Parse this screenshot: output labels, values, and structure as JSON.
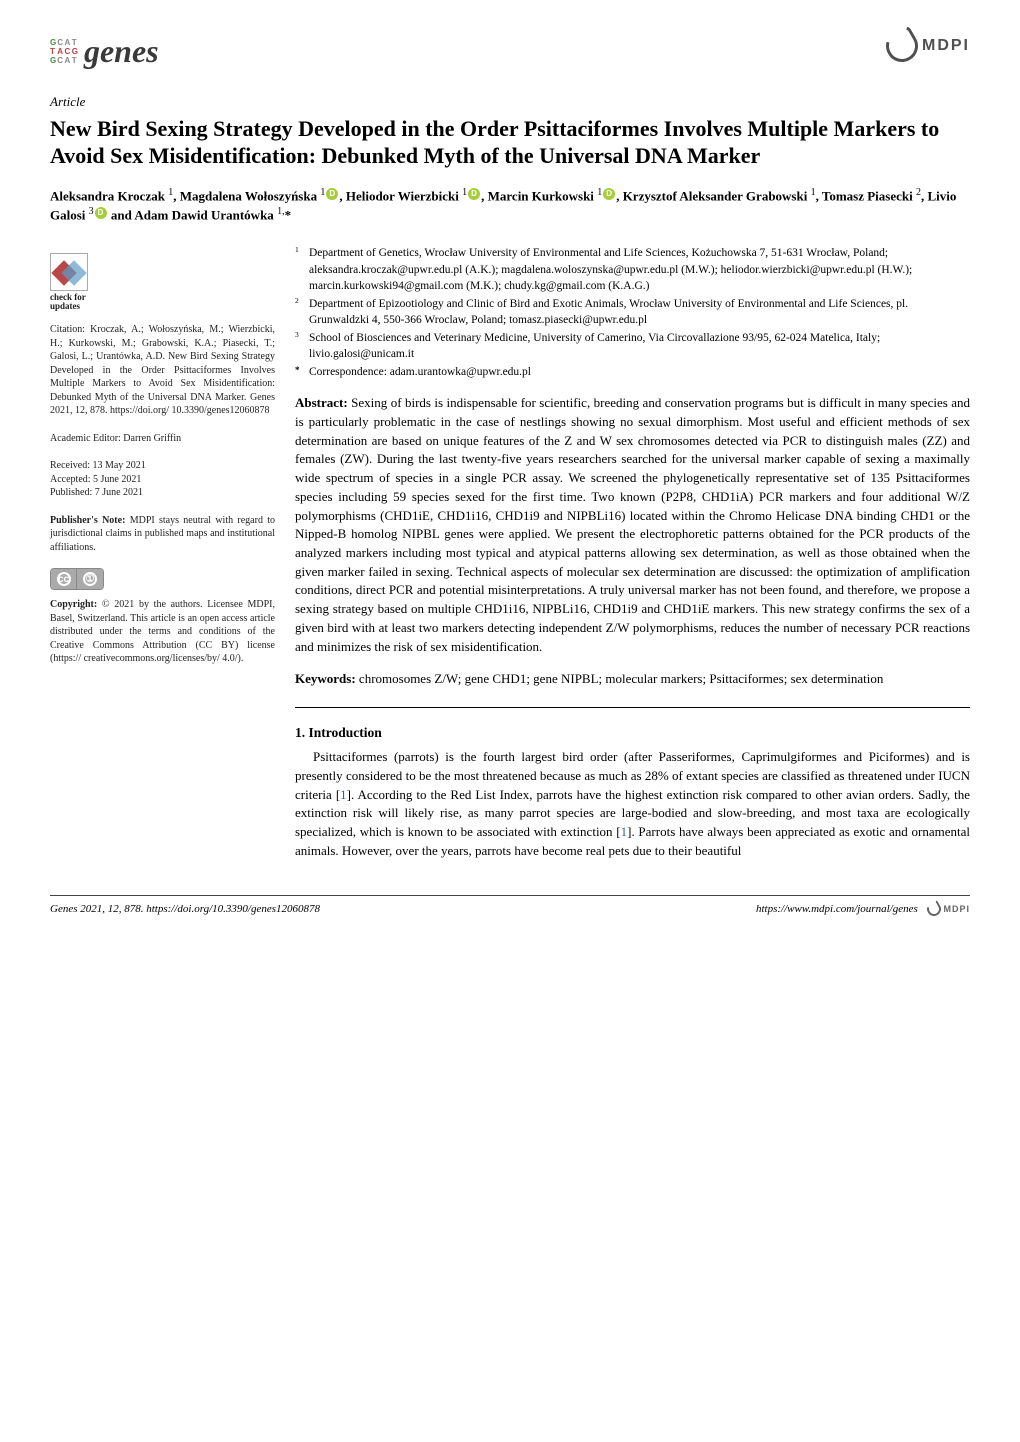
{
  "colors": {
    "background": "#ffffff",
    "text": "#000000",
    "link": "#2a5db0",
    "orcid": "#a6ce39",
    "mdpi_gray": "#505050"
  },
  "journal_logo": {
    "grid_letters": [
      "G",
      "C",
      "A",
      "T",
      "T",
      "A",
      "C",
      "G",
      "G",
      "C",
      "A",
      "T"
    ],
    "text": "genes"
  },
  "mdpi_label": "MDPI",
  "article_type": "Article",
  "title": "New Bird Sexing Strategy Developed in the Order Psittaciformes Involves Multiple Markers to Avoid Sex Misidentification: Debunked Myth of the Universal DNA Marker",
  "authors_html": "Aleksandra Kroczak <sup>1</sup>, Magdalena Wołoszyńska <sup>1</sup><span class='orcid' data-name='orcid-icon' data-interactable='false'></span>, Heliodor Wierzbicki <sup>1</sup><span class='orcid' data-name='orcid-icon' data-interactable='false'></span>, Marcin Kurkowski <sup>1</sup><span class='orcid' data-name='orcid-icon' data-interactable='false'></span>, Krzysztof Aleksander Grabowski <sup>1</sup>, Tomasz Piasecki <sup>2</sup>, Livio Galosi <sup>3</sup><span class='orcid' data-name='orcid-icon' data-interactable='false'></span> and Adam Dawid Urantówka <sup>1,</sup>*",
  "affiliations": [
    {
      "n": "1",
      "text": "Department of Genetics, Wrocław University of Environmental and Life Sciences, Kożuchowska 7, 51-631 Wrocław, Poland; aleksandra.kroczak@upwr.edu.pl (A.K.); magdalena.woloszynska@upwr.edu.pl (M.W.); heliodor.wierzbicki@upwr.edu.pl (H.W.); marcin.kurkowski94@gmail.com (M.K.); chudy.kg@gmail.com (K.A.G.)"
    },
    {
      "n": "2",
      "text": "Department of Epizootiology and Clinic of Bird and Exotic Animals, Wrocław University of Environmental and Life Sciences, pl. Grunwaldzki 4, 550-366 Wroclaw, Poland; tomasz.piasecki@upwr.edu.pl"
    },
    {
      "n": "3",
      "text": "School of Biosciences and Veterinary Medicine, University of Camerino, Via Circovallazione 93/95, 62-024 Matelica, Italy; livio.galosi@unicam.it"
    }
  ],
  "correspondence": {
    "symbol": "*",
    "text": "Correspondence: adam.urantowka@upwr.edu.pl"
  },
  "check_for_updates": {
    "line1": "check for",
    "line2": "updates"
  },
  "citation": "Citation: Kroczak, A.; Wołoszyńska, M.; Wierzbicki, H.; Kurkowski, M.; Grabowski, K.A.; Piasecki, T.; Galosi, L.; Urantówka, A.D. New Bird Sexing Strategy Developed in the Order Psittaciformes Involves Multiple Markers to Avoid Sex Misidentification: Debunked Myth of the Universal DNA Marker. Genes 2021, 12, 878. https://doi.org/ 10.3390/genes12060878",
  "editor": "Academic Editor: Darren Griffin",
  "dates": {
    "received": "Received: 13 May 2021",
    "accepted": "Accepted: 5 June 2021",
    "published": "Published: 7 June 2021"
  },
  "publisher_note": "Publisher's Note: MDPI stays neutral with regard to jurisdictional claims in published maps and institutional affiliations.",
  "copyright": "Copyright: © 2021 by the authors. Licensee MDPI, Basel, Switzerland. This article is an open access article distributed under the terms and conditions of the Creative Commons Attribution (CC BY) license (https:// creativecommons.org/licenses/by/ 4.0/).",
  "abstract_label": "Abstract:",
  "abstract": "Sexing of birds is indispensable for scientific, breeding and conservation programs but is difficult in many species and is particularly problematic in the case of nestlings showing no sexual dimorphism. Most useful and efficient methods of sex determination are based on unique features of the Z and W sex chromosomes detected via PCR to distinguish males (ZZ) and females (ZW). During the last twenty-five years researchers searched for the universal marker capable of sexing a maximally wide spectrum of species in a single PCR assay. We screened the phylogenetically representative set of 135 Psittaciformes species including 59 species sexed for the first time. Two known (P2P8, CHD1iA) PCR markers and four additional W/Z polymorphisms (CHD1iE, CHD1i16, CHD1i9 and NIPBLi16) located within the Chromo Helicase DNA binding CHD1 or the Nipped-B homolog NIPBL genes were applied. We present the electrophoretic patterns obtained for the PCR products of the analyzed markers including most typical and atypical patterns allowing sex determination, as well as those obtained when the given marker failed in sexing. Technical aspects of molecular sex determination are discussed: the optimization of amplification conditions, direct PCR and potential misinterpretations. A truly universal marker has not been found, and therefore, we propose a sexing strategy based on multiple CHD1i16, NIPBLi16, CHD1i9 and CHD1iE markers. This new strategy confirms the sex of a given bird with at least two markers detecting independent Z/W polymorphisms, reduces the number of necessary PCR reactions and minimizes the risk of sex misidentification.",
  "keywords_label": "Keywords:",
  "keywords": "chromosomes Z/W; gene CHD1; gene NIPBL; molecular markers; Psittaciformes; sex determination",
  "section1_heading": "1. Introduction",
  "section1_body": "Psittaciformes (parrots) is the fourth largest bird order (after Passeriformes, Caprimulgiformes and Piciformes) and is presently considered to be the most threatened because as much as 28% of extant species are classified as threatened under IUCN criteria [1]. According to the Red List Index, parrots have the highest extinction risk compared to other avian orders. Sadly, the extinction risk will likely rise, as many parrot species are large-bodied and slow-breeding, and most taxa are ecologically specialized, which is known to be associated with extinction [1]. Parrots have always been appreciated as exotic and ornamental animals. However, over the years, parrots have become real pets due to their beautiful",
  "footer": {
    "left": "Genes 2021, 12, 878. https://doi.org/10.3390/genes12060878",
    "right": "https://www.mdpi.com/journal/genes"
  }
}
